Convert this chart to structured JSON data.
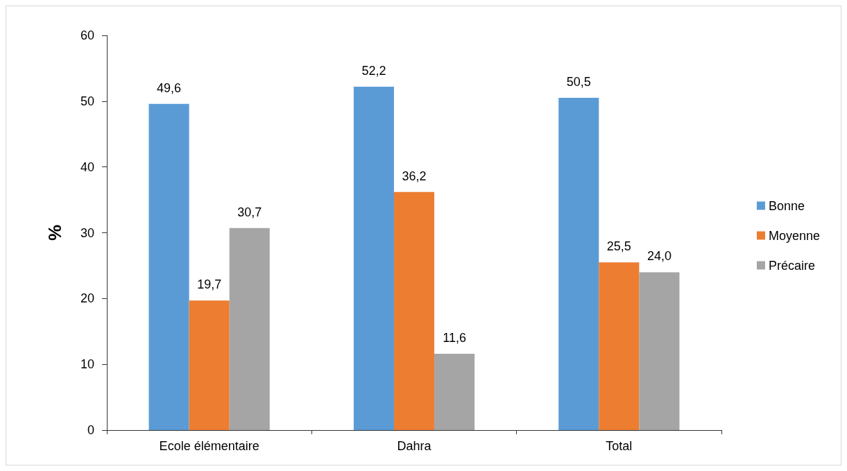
{
  "chart_data": {
    "type": "bar",
    "ylabel": "%",
    "categories": [
      "Ecole élémentaire",
      "Dahra",
      "Total"
    ],
    "series": [
      {
        "name": "Bonne",
        "color": "#5b9bd5",
        "values": [
          49.6,
          52.2,
          50.5
        ],
        "value_labels": [
          "49,6",
          "52,2",
          "50,5"
        ]
      },
      {
        "name": "Moyenne",
        "color": "#ed7d31",
        "values": [
          19.7,
          36.2,
          25.5
        ],
        "value_labels": [
          "19,7",
          "36,2",
          "25,5"
        ]
      },
      {
        "name": "Précaire",
        "color": "#a5a5a5",
        "values": [
          30.7,
          11.6,
          24.0
        ],
        "value_labels": [
          "30,7",
          "11,6",
          "24,0"
        ]
      }
    ],
    "ylim": [
      0,
      60
    ],
    "yticks": [
      0,
      10,
      20,
      30,
      40,
      50,
      60
    ],
    "grid": false,
    "legend": "right"
  }
}
